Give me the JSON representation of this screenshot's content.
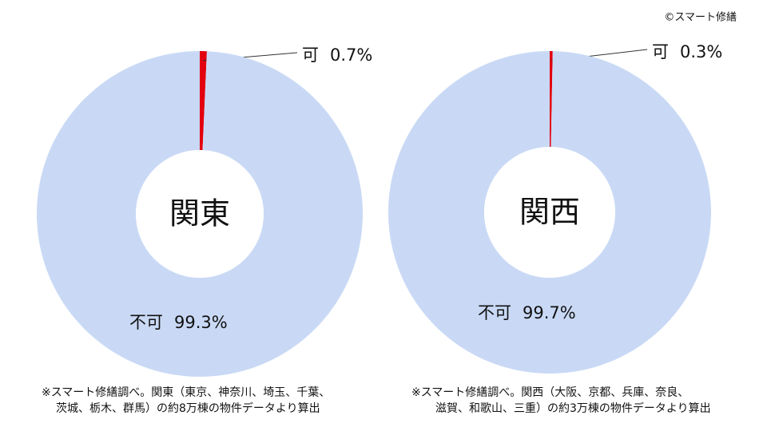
{
  "credit": "©スマート修繕",
  "chart_data": [
    {
      "type": "donut",
      "title": "関東",
      "categories": [
        "可",
        "不可"
      ],
      "values": [
        0.7,
        99.3
      ],
      "value_labels": [
        "0.7%",
        "99.3%"
      ],
      "colors": [
        "#e3000f",
        "#c9d9f5"
      ],
      "note": [
        "※スマート修繕調べ。関東（東京、神奈川、埼玉、千葉、",
        "茨城、栃木、群馬）の約8万棟の物件データより算出"
      ]
    },
    {
      "type": "donut",
      "title": "関西",
      "categories": [
        "可",
        "不可"
      ],
      "values": [
        0.3,
        99.7
      ],
      "value_labels": [
        "0.3%",
        "99.7%"
      ],
      "colors": [
        "#e3000f",
        "#c9d9f5"
      ],
      "note": [
        "※スマート修繕調べ。関西（大阪、京都、兵庫、奈良、",
        "滋賀、和歌山、三重）の約3万棟の物件データより算出"
      ]
    }
  ]
}
